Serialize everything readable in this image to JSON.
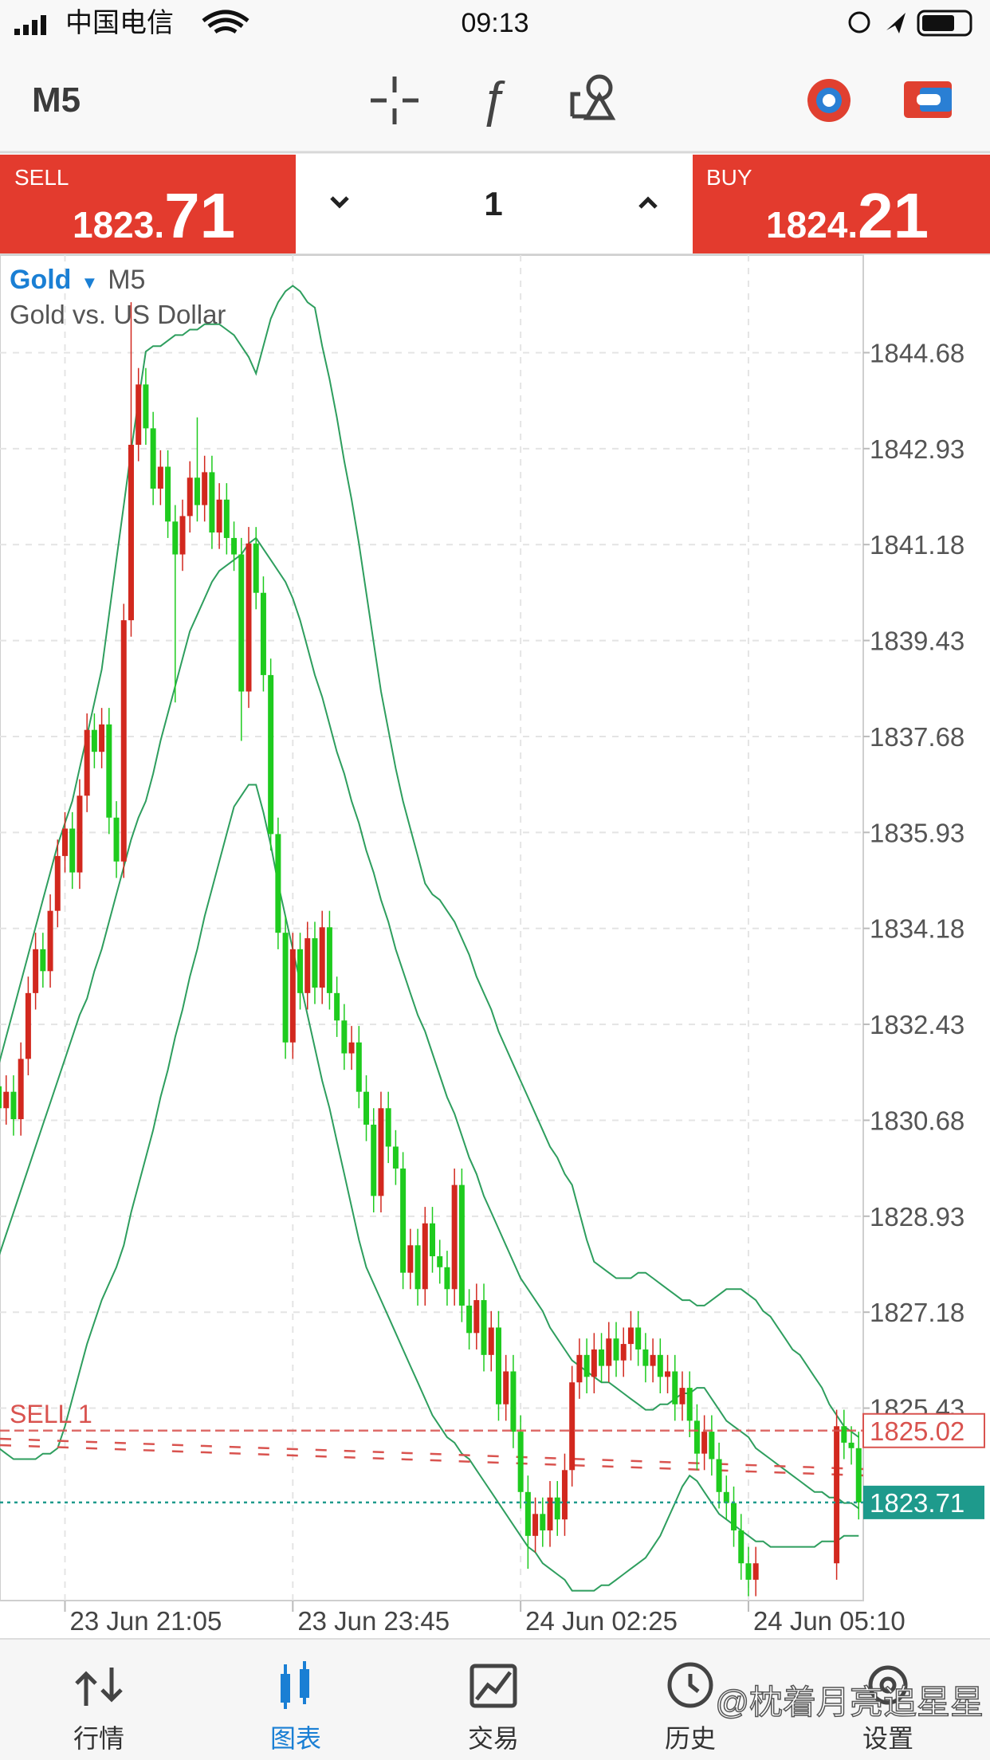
{
  "status_bar": {
    "carrier": "中国电信",
    "time": "09:13"
  },
  "toolbar": {
    "timeframe": "M5"
  },
  "trade_panel": {
    "sell": {
      "label": "SELL",
      "price_main": "1823.",
      "price_big": "71"
    },
    "lot": "1",
    "buy": {
      "label": "BUY",
      "price_main": "1824.",
      "price_big": "21"
    }
  },
  "chart_data": {
    "type": "candlestick",
    "symbol": "Gold",
    "timeframe": "M5",
    "description": "Gold vs. US Dollar",
    "categories": [
      null,
      null,
      null,
      null,
      null,
      null,
      null,
      null,
      null,
      "23 Jun 21:05",
      null,
      null,
      null,
      null,
      null,
      null,
      null,
      null,
      null,
      null,
      null,
      null,
      null,
      null,
      null,
      null,
      null,
      null,
      null,
      null,
      null,
      null,
      null,
      null,
      null,
      null,
      null,
      null,
      null,
      null,
      "23 Jun 23:45",
      null,
      null,
      null,
      null,
      null,
      null,
      null,
      null,
      null,
      null,
      null,
      null,
      null,
      null,
      null,
      null,
      null,
      null,
      null,
      null,
      null,
      null,
      null,
      null,
      null,
      null,
      null,
      null,
      null,
      null,
      "24 Jun 02:25",
      null,
      null,
      null,
      null,
      null,
      null,
      null,
      null,
      null,
      null,
      null,
      null,
      null,
      null,
      null,
      null,
      null,
      null,
      null,
      null,
      null,
      null,
      null,
      null,
      null,
      null,
      null,
      null,
      null,
      null,
      "24 Jun 05:10",
      null,
      null,
      null,
      null,
      null,
      null,
      null,
      null,
      null,
      null,
      null,
      null,
      null,
      null,
      null
    ],
    "open": [
      1831.3,
      1830.9,
      1831.2,
      1830.7,
      1831.8,
      1833.0,
      1833.8,
      1833.4,
      1834.5,
      1835.5,
      1836.0,
      1835.2,
      1836.6,
      1837.8,
      1837.4,
      1837.9,
      1836.2,
      1835.4,
      1839.8,
      1843.0,
      1844.1,
      1843.3,
      1842.2,
      1842.6,
      1841.6,
      1841.0,
      1841.7,
      1842.4,
      1841.9,
      1842.5,
      1841.4,
      1842.0,
      1841.3,
      1841.0,
      1838.5,
      1841.2,
      1840.3,
      1838.8,
      1835.9,
      1834.1,
      1832.1,
      1833.8,
      1833.0,
      1834.0,
      1833.1,
      1834.2,
      1833.0,
      1832.5,
      1831.9,
      1832.1,
      1831.2,
      1830.6,
      1829.3,
      1830.9,
      1830.2,
      1829.8,
      1827.9,
      1828.4,
      1827.6,
      1828.8,
      1828.2,
      1828.0,
      1827.6,
      1829.5,
      1827.3,
      1826.8,
      1827.4,
      1826.4,
      1826.9,
      1825.5,
      1826.1,
      1825.0,
      1823.9,
      1823.1,
      1823.5,
      1823.2,
      1823.8,
      1823.4,
      1824.3,
      1825.9,
      1826.4,
      1826.0,
      1826.5,
      1826.2,
      1826.7,
      1826.3,
      1826.6,
      1826.9,
      1826.5,
      1826.2,
      1826.4,
      1826.0,
      1826.1,
      1825.5,
      1825.8,
      1825.2,
      1824.6,
      1825.0,
      1824.5,
      1823.9,
      1823.7,
      1823.2,
      1822.6,
      1822.3,
      null,
      null,
      null,
      null,
      null,
      null,
      null,
      null,
      null,
      null,
      1822.6,
      1825.1,
      1824.8,
      1824.7
    ],
    "high": [
      1831.6,
      1831.5,
      1831.5,
      1832.1,
      1833.3,
      1834.1,
      1834.1,
      1834.8,
      1835.8,
      1836.3,
      1836.3,
      1836.9,
      1838.1,
      1838.1,
      1838.2,
      1838.2,
      1836.5,
      1840.1,
      1845.6,
      1844.4,
      1844.4,
      1843.6,
      1842.9,
      1842.9,
      1841.9,
      1842.0,
      1842.7,
      1843.5,
      1842.8,
      1842.8,
      1842.3,
      1842.3,
      1841.6,
      1841.3,
      1841.5,
      1841.5,
      1840.6,
      1839.1,
      1836.2,
      1834.4,
      1834.1,
      1834.1,
      1834.3,
      1834.3,
      1834.5,
      1834.5,
      1833.3,
      1832.8,
      1832.4,
      1832.4,
      1831.5,
      1830.9,
      1831.2,
      1831.2,
      1830.5,
      1830.1,
      1828.7,
      1828.7,
      1829.1,
      1829.1,
      1828.5,
      1828.3,
      1829.8,
      1829.8,
      1827.6,
      1827.7,
      1827.7,
      1827.2,
      1827.2,
      1826.4,
      1826.4,
      1825.3,
      1824.2,
      1823.8,
      1823.8,
      1824.1,
      1824.1,
      1824.6,
      1826.2,
      1826.7,
      1826.7,
      1826.8,
      1826.8,
      1827.0,
      1827.0,
      1826.9,
      1827.2,
      1827.2,
      1826.8,
      1826.7,
      1826.7,
      1826.4,
      1826.4,
      1826.1,
      1826.1,
      1825.5,
      1825.3,
      1825.3,
      1824.8,
      1824.2,
      1824.0,
      1823.5,
      1822.9,
      1822.9,
      null,
      null,
      null,
      null,
      null,
      null,
      null,
      null,
      null,
      null,
      1825.4,
      1825.4,
      1825.1,
      1825.0
    ],
    "low": [
      1830.6,
      1830.6,
      1830.4,
      1830.4,
      1831.5,
      1832.7,
      1833.1,
      1833.1,
      1834.2,
      1835.2,
      1834.9,
      1834.9,
      1836.3,
      1837.1,
      1837.1,
      1835.9,
      1835.1,
      1835.1,
      1839.5,
      1842.7,
      1843.0,
      1841.9,
      1841.9,
      1841.3,
      1838.3,
      1840.7,
      1841.4,
      1841.6,
      1841.6,
      1841.1,
      1841.1,
      1841.0,
      1840.7,
      1837.6,
      1838.2,
      1840.0,
      1838.5,
      1835.6,
      1833.8,
      1831.8,
      1831.8,
      1832.7,
      1832.7,
      1832.8,
      1832.8,
      1832.7,
      1832.2,
      1831.6,
      1831.6,
      1830.9,
      1830.3,
      1829.0,
      1829.0,
      1829.9,
      1829.5,
      1827.6,
      1827.6,
      1827.3,
      1827.3,
      1827.9,
      1827.7,
      1827.3,
      1827.3,
      1827.0,
      1826.5,
      1826.5,
      1826.1,
      1826.1,
      1825.2,
      1825.2,
      1824.7,
      1823.6,
      1822.5,
      1822.8,
      1822.9,
      1822.9,
      1823.1,
      1823.1,
      1824.0,
      1825.6,
      1825.7,
      1825.7,
      1825.9,
      1825.9,
      1826.0,
      1826.0,
      1826.3,
      1826.2,
      1825.9,
      1825.9,
      1825.7,
      1825.7,
      1825.2,
      1825.2,
      1824.9,
      1824.3,
      1824.3,
      1824.2,
      1823.6,
      1823.4,
      1822.9,
      1822.3,
      1822.0,
      1822.0,
      null,
      null,
      null,
      null,
      null,
      null,
      null,
      null,
      null,
      null,
      1822.3,
      1824.5,
      1824.4,
      1823.4
    ],
    "close": [
      1830.9,
      1831.2,
      1830.7,
      1831.8,
      1833.0,
      1833.8,
      1833.4,
      1834.5,
      1835.5,
      1836.0,
      1835.2,
      1836.6,
      1837.8,
      1837.4,
      1837.9,
      1836.2,
      1835.4,
      1839.8,
      1843.0,
      1844.1,
      1843.3,
      1842.2,
      1842.6,
      1841.6,
      1841.0,
      1841.7,
      1842.4,
      1841.9,
      1842.5,
      1841.4,
      1842.0,
      1841.3,
      1841.0,
      1838.5,
      1841.2,
      1840.3,
      1838.8,
      1835.9,
      1834.1,
      1832.1,
      1833.8,
      1833.0,
      1834.0,
      1833.1,
      1834.2,
      1833.0,
      1832.5,
      1831.9,
      1832.1,
      1831.2,
      1830.6,
      1829.3,
      1830.9,
      1830.2,
      1829.8,
      1827.9,
      1828.4,
      1827.6,
      1828.8,
      1828.2,
      1828.0,
      1827.6,
      1829.5,
      1827.3,
      1826.8,
      1827.4,
      1826.4,
      1826.9,
      1825.5,
      1826.1,
      1825.0,
      1823.9,
      1823.1,
      1823.5,
      1823.2,
      1823.8,
      1823.4,
      1824.3,
      1825.9,
      1826.4,
      1826.0,
      1826.5,
      1826.2,
      1826.7,
      1826.3,
      1826.6,
      1826.9,
      1826.5,
      1826.2,
      1826.4,
      1826.0,
      1826.1,
      1825.5,
      1825.8,
      1825.2,
      1824.6,
      1825.0,
      1824.5,
      1823.9,
      1823.7,
      1823.2,
      1822.6,
      1822.3,
      1822.6,
      null,
      null,
      null,
      null,
      null,
      null,
      null,
      null,
      null,
      null,
      1825.1,
      1824.8,
      1824.7,
      1823.71
    ],
    "up_color": "#d2281e",
    "down_color": "#1ecb1e",
    "bands": {
      "color": "#2e9e5e",
      "upper": [
        1831.7,
        1832.2,
        1832.7,
        1833.2,
        1833.7,
        1834.2,
        1834.7,
        1835.2,
        1835.7,
        1836.1,
        1836.5,
        1837.1,
        1837.7,
        1838.3,
        1838.9,
        1839.9,
        1840.9,
        1841.9,
        1842.9,
        1843.8,
        1844.7,
        1844.8,
        1844.8,
        1844.9,
        1845.0,
        1845.0,
        1845.1,
        1845.1,
        1845.2,
        1845.2,
        1845.2,
        1845.1,
        1845.0,
        1844.8,
        1844.6,
        1844.3,
        1844.8,
        1845.3,
        1845.6,
        1845.8,
        1845.9,
        1845.8,
        1845.6,
        1845.5,
        1844.8,
        1844.2,
        1843.5,
        1842.7,
        1842.0,
        1841.2,
        1840.3,
        1839.4,
        1838.5,
        1837.8,
        1837.1,
        1836.5,
        1836.0,
        1835.5,
        1835.0,
        1834.8,
        1834.7,
        1834.5,
        1834.3,
        1834.0,
        1833.7,
        1833.3,
        1833.0,
        1832.7,
        1832.3,
        1832.0,
        1831.7,
        1831.4,
        1831.1,
        1830.8,
        1830.5,
        1830.2,
        1830.0,
        1829.7,
        1829.5,
        1829.0,
        1828.5,
        1828.1,
        1828.0,
        1827.9,
        1827.8,
        1827.8,
        1827.8,
        1827.9,
        1827.9,
        1827.8,
        1827.7,
        1827.6,
        1827.5,
        1827.4,
        1827.4,
        1827.3,
        1827.3,
        1827.4,
        1827.5,
        1827.6,
        1827.6,
        1827.6,
        1827.5,
        1827.4,
        1827.2,
        1827.1,
        1826.9,
        1826.7,
        1826.5,
        1826.4,
        1826.2,
        1826.0,
        1825.8,
        1825.5,
        1825.3,
        1825.1,
        1825.0,
        1824.9
      ],
      "middle": [
        1828.2,
        1828.6,
        1829.0,
        1829.4,
        1829.8,
        1830.2,
        1830.6,
        1831.0,
        1831.4,
        1831.8,
        1832.2,
        1832.6,
        1832.9,
        1833.4,
        1833.8,
        1834.3,
        1834.8,
        1835.3,
        1835.8,
        1836.2,
        1836.5,
        1837.0,
        1837.6,
        1838.1,
        1838.6,
        1839.1,
        1839.6,
        1839.9,
        1840.2,
        1840.5,
        1840.7,
        1840.8,
        1840.9,
        1841.0,
        1841.2,
        1841.3,
        1841.1,
        1840.9,
        1840.7,
        1840.5,
        1840.2,
        1839.8,
        1839.3,
        1838.8,
        1838.4,
        1837.9,
        1837.4,
        1837.0,
        1836.5,
        1836.1,
        1835.6,
        1835.2,
        1834.7,
        1834.3,
        1833.8,
        1833.4,
        1833.0,
        1832.6,
        1832.3,
        1831.9,
        1831.5,
        1831.1,
        1830.8,
        1830.4,
        1830.0,
        1829.7,
        1829.3,
        1829.0,
        1828.7,
        1828.4,
        1828.1,
        1827.8,
        1827.6,
        1827.4,
        1827.2,
        1826.9,
        1826.7,
        1826.5,
        1826.3,
        1826.2,
        1826.1,
        1826.0,
        1825.9,
        1825.9,
        1825.8,
        1825.7,
        1825.6,
        1825.5,
        1825.4,
        1825.4,
        1825.5,
        1825.5,
        1825.6,
        1825.7,
        1825.7,
        1825.8,
        1825.8,
        1825.6,
        1825.4,
        1825.2,
        1825.1,
        1825.0,
        1824.9,
        1824.7,
        1824.6,
        1824.5,
        1824.4,
        1824.3,
        1824.2,
        1824.1,
        1824.0,
        1823.9,
        1823.9,
        1823.8,
        1823.8,
        1823.7,
        1823.7,
        1823.6
      ],
      "lower": [
        1824.7,
        1824.6,
        1824.5,
        1824.5,
        1824.5,
        1824.5,
        1824.6,
        1824.6,
        1824.7,
        1825.1,
        1825.6,
        1826.1,
        1826.6,
        1827.0,
        1827.4,
        1827.7,
        1828.0,
        1828.4,
        1829.0,
        1829.5,
        1830.0,
        1830.5,
        1831.1,
        1831.6,
        1832.2,
        1832.7,
        1833.3,
        1833.8,
        1834.4,
        1834.9,
        1835.4,
        1835.9,
        1836.4,
        1836.6,
        1836.8,
        1836.8,
        1836.3,
        1835.7,
        1835.0,
        1834.4,
        1833.8,
        1833.2,
        1832.6,
        1832.0,
        1831.4,
        1830.9,
        1830.3,
        1829.7,
        1829.1,
        1828.5,
        1828.0,
        1827.7,
        1827.4,
        1827.1,
        1826.8,
        1826.5,
        1826.2,
        1825.9,
        1825.6,
        1825.3,
        1825.1,
        1824.9,
        1824.8,
        1824.6,
        1824.5,
        1824.3,
        1824.1,
        1823.9,
        1823.7,
        1823.5,
        1823.3,
        1823.1,
        1822.9,
        1822.8,
        1822.6,
        1822.5,
        1822.4,
        1822.3,
        1822.1,
        1822.1,
        1822.1,
        1822.1,
        1822.2,
        1822.2,
        1822.3,
        1822.4,
        1822.5,
        1822.6,
        1822.7,
        1822.9,
        1823.1,
        1823.4,
        1823.7,
        1824.0,
        1824.2,
        1824.1,
        1823.9,
        1823.7,
        1823.5,
        1823.4,
        1823.3,
        1823.2,
        1823.1,
        1823.0,
        1823.0,
        1822.9,
        1822.9,
        1822.9,
        1822.9,
        1822.9,
        1822.9,
        1822.9,
        1823.0,
        1823.0,
        1823.0,
        1823.1,
        1823.1,
        1823.1
      ]
    },
    "ylim": [
      1821.92,
      1846.46
    ],
    "yticks": [
      1844.68,
      1842.93,
      1841.18,
      1839.43,
      1837.68,
      1835.93,
      1834.18,
      1832.43,
      1830.68,
      1828.93,
      1827.18,
      1825.43
    ],
    "grid": true,
    "order_line": {
      "label": "SELL 1",
      "value": 1825.02,
      "color": "#d9534f"
    },
    "bid_line": {
      "value": 1823.71,
      "color": "#1e9a8c"
    }
  },
  "nav": {
    "items": [
      "行情",
      "图表",
      "交易",
      "历史",
      "设置"
    ],
    "active": 1
  },
  "watermark": "@枕着月亮追星星"
}
